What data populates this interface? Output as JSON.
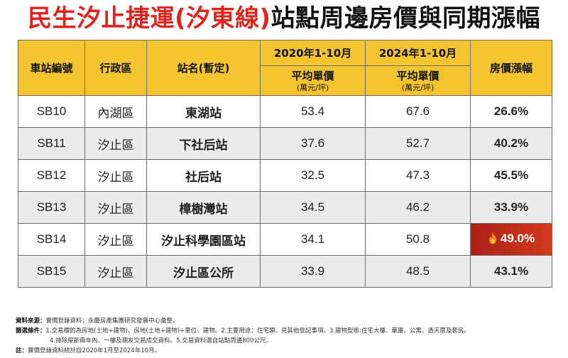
{
  "title": {
    "part1": "民生汐止捷運(汐東線)",
    "part2": "站點周邊房價與同期漲幅"
  },
  "header": {
    "station_code": "車站編號",
    "district": "行政區",
    "station_name": "站名(暫定)",
    "period1": "2020年1-10月",
    "period2": "2024年1-10月",
    "avg_price": "平均單價",
    "unit": "(萬元/坪)",
    "growth": "房價漲幅"
  },
  "chart_data": {
    "type": "table",
    "columns": [
      "車站編號",
      "行政區",
      "站名(暫定)",
      "2020年1-10月 平均單價(萬元/坪)",
      "2024年1-10月 平均單價(萬元/坪)",
      "房價漲幅"
    ],
    "rows": [
      {
        "code": "SB10",
        "district": "內湖區",
        "name": "東湖站",
        "p2020": "53.4",
        "p2024": "67.6",
        "growth": "26.6%",
        "highlight": false
      },
      {
        "code": "SB11",
        "district": "汐止區",
        "name": "下社后站",
        "p2020": "37.6",
        "p2024": "52.7",
        "growth": "40.2%",
        "highlight": false
      },
      {
        "code": "SB12",
        "district": "汐止區",
        "name": "社后站",
        "p2020": "32.5",
        "p2024": "47.3",
        "growth": "45.5%",
        "highlight": false
      },
      {
        "code": "SB13",
        "district": "汐止區",
        "name": "樟樹灣站",
        "p2020": "34.5",
        "p2024": "46.2",
        "growth": "33.9%",
        "highlight": false
      },
      {
        "code": "SB14",
        "district": "汐止區",
        "name": "汐止科學園區站",
        "p2020": "34.1",
        "p2024": "50.8",
        "growth": "49.0%",
        "highlight": true
      },
      {
        "code": "SB15",
        "district": "汐止區",
        "name": "汐止區公所",
        "p2020": "33.9",
        "p2024": "48.5",
        "growth": "43.1%",
        "highlight": false
      }
    ]
  },
  "notes": {
    "source_label": "資料來源：",
    "source_text": "實價登錄資料；永慶房產集團研究發展中心彙整。",
    "filter_label": "篩選條件：",
    "filter_text1": "1.交易標的為房地(土地+建物)、房地(土地+建物)+車位、建物。2.主要用途：住宅類、見其他登記事項。3.建物型態:住宅大樓、華廈、公寓、透天厝及套房。",
    "filter_text2": "4.排除屋齡兩年內、一樓及親友交易成交資料。5.交易資料選自站點周邊800公尺。",
    "note_label": "註：",
    "note_text": "實價登錄資料統計自2020年1月至2024年10月。"
  },
  "colors": {
    "title_red": "#e0231c",
    "header_yellow": "#f4c430",
    "highlight_red": "#c0281a",
    "row_gray": "#ebebeb"
  },
  "icons": {
    "highlight": "flame-icon"
  }
}
